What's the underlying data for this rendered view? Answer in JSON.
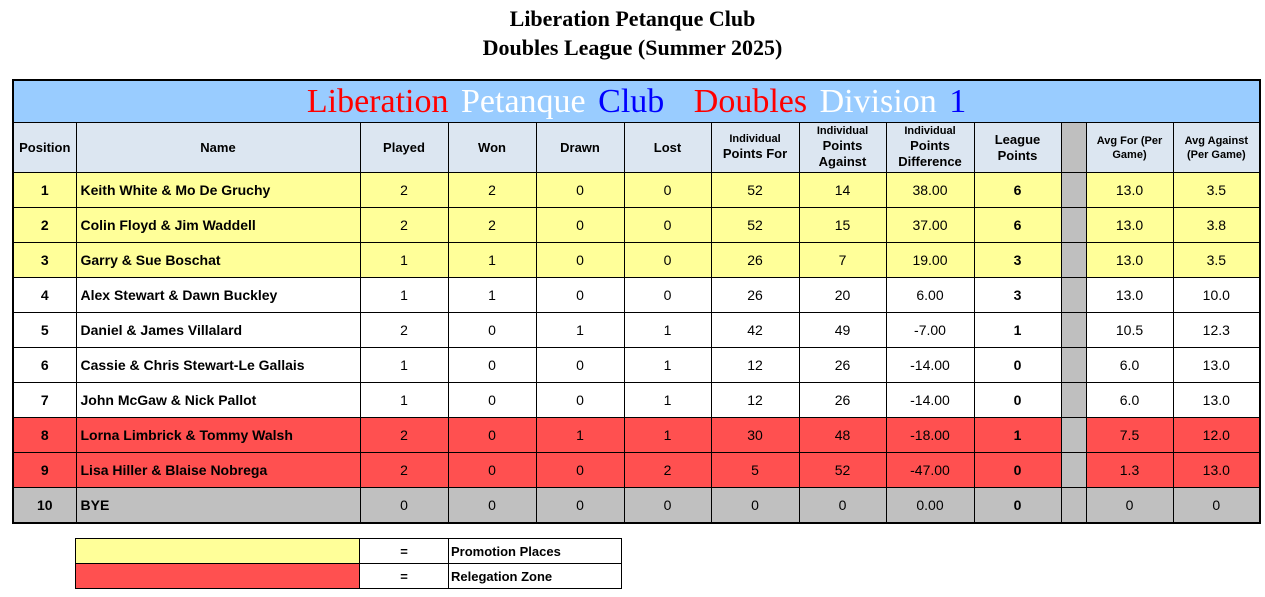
{
  "titles": {
    "line1": "Liberation Petanque Club",
    "line2": "Doubles League (Summer 2025)"
  },
  "banner": {
    "words": [
      {
        "text": "Liberation",
        "color": "#ff0000"
      },
      {
        "text": "Petanque",
        "color": "#ffffff"
      },
      {
        "text": "Club",
        "color": "#0000ff"
      },
      {
        "text": "Doubles",
        "color": "#ff0000"
      },
      {
        "text": "Division",
        "color": "#ffffff"
      },
      {
        "text": "1",
        "color": "#0000ff"
      }
    ],
    "background": "#99ccff"
  },
  "headers": {
    "position": "Position",
    "name": "Name",
    "played": "Played",
    "won": "Won",
    "drawn": "Drawn",
    "lost": "Lost",
    "points_for_top": "Individual",
    "points_for_bottom": "Points For",
    "points_against_top": "Individual",
    "points_against_bottom": "Points Against",
    "points_diff_top": "Individual",
    "points_diff_bottom": "Points Difference",
    "league_points": "League Points",
    "avg_for": "Avg For (Per Game)",
    "avg_against": "Avg Against (Per Game)"
  },
  "colors": {
    "promotion": "#ffff99",
    "relegation": "#ff5050",
    "bye": "#c0c0c0",
    "header": "#dce6f1"
  },
  "rows": [
    {
      "pos": "1",
      "name": "Keith White & Mo De Gruchy",
      "played": "2",
      "won": "2",
      "drawn": "0",
      "lost": "0",
      "pf": "52",
      "pa": "14",
      "pd": "38.00",
      "lp": "6",
      "avg_for": "13.0",
      "avg_against": "3.5"
    },
    {
      "pos": "2",
      "name": "Colin Floyd & Jim Waddell",
      "played": "2",
      "won": "2",
      "drawn": "0",
      "lost": "0",
      "pf": "52",
      "pa": "15",
      "pd": "37.00",
      "lp": "6",
      "avg_for": "13.0",
      "avg_against": "3.8"
    },
    {
      "pos": "3",
      "name": "Garry & Sue Boschat",
      "played": "1",
      "won": "1",
      "drawn": "0",
      "lost": "0",
      "pf": "26",
      "pa": "7",
      "pd": "19.00",
      "lp": "3",
      "avg_for": "13.0",
      "avg_against": "3.5"
    },
    {
      "pos": "4",
      "name": "Alex Stewart & Dawn Buckley",
      "played": "1",
      "won": "1",
      "drawn": "0",
      "lost": "0",
      "pf": "26",
      "pa": "20",
      "pd": "6.00",
      "lp": "3",
      "avg_for": "13.0",
      "avg_against": "10.0"
    },
    {
      "pos": "5",
      "name": "Daniel & James Villalard",
      "played": "2",
      "won": "0",
      "drawn": "1",
      "lost": "1",
      "pf": "42",
      "pa": "49",
      "pd": "-7.00",
      "lp": "1",
      "avg_for": "10.5",
      "avg_against": "12.3"
    },
    {
      "pos": "6",
      "name": "Cassie & Chris Stewart-Le Gallais",
      "played": "1",
      "won": "0",
      "drawn": "0",
      "lost": "1",
      "pf": "12",
      "pa": "26",
      "pd": "-14.00",
      "lp": "0",
      "avg_for": "6.0",
      "avg_against": "13.0"
    },
    {
      "pos": "7",
      "name": "John McGaw & Nick Pallot",
      "played": "1",
      "won": "0",
      "drawn": "0",
      "lost": "1",
      "pf": "12",
      "pa": "26",
      "pd": "-14.00",
      "lp": "0",
      "avg_for": "6.0",
      "avg_against": "13.0"
    },
    {
      "pos": "8",
      "name": "Lorna Limbrick & Tommy Walsh",
      "played": "2",
      "won": "0",
      "drawn": "1",
      "lost": "1",
      "pf": "30",
      "pa": "48",
      "pd": "-18.00",
      "lp": "1",
      "avg_for": "7.5",
      "avg_against": "12.0"
    },
    {
      "pos": "9",
      "name": "Lisa Hiller & Blaise Nobrega",
      "played": "2",
      "won": "0",
      "drawn": "0",
      "lost": "2",
      "pf": "5",
      "pa": "52",
      "pd": "-47.00",
      "lp": "0",
      "avg_for": "1.3",
      "avg_against": "13.0"
    },
    {
      "pos": "10",
      "name": "BYE",
      "played": "0",
      "won": "0",
      "drawn": "0",
      "lost": "0",
      "pf": "0",
      "pa": "0",
      "pd": "0.00",
      "lp": "0",
      "avg_for": "0",
      "avg_against": "0"
    }
  ],
  "legend": [
    {
      "equals": "=",
      "label": "Promotion Places"
    },
    {
      "equals": "=",
      "label": "Relegation  Zone"
    }
  ]
}
